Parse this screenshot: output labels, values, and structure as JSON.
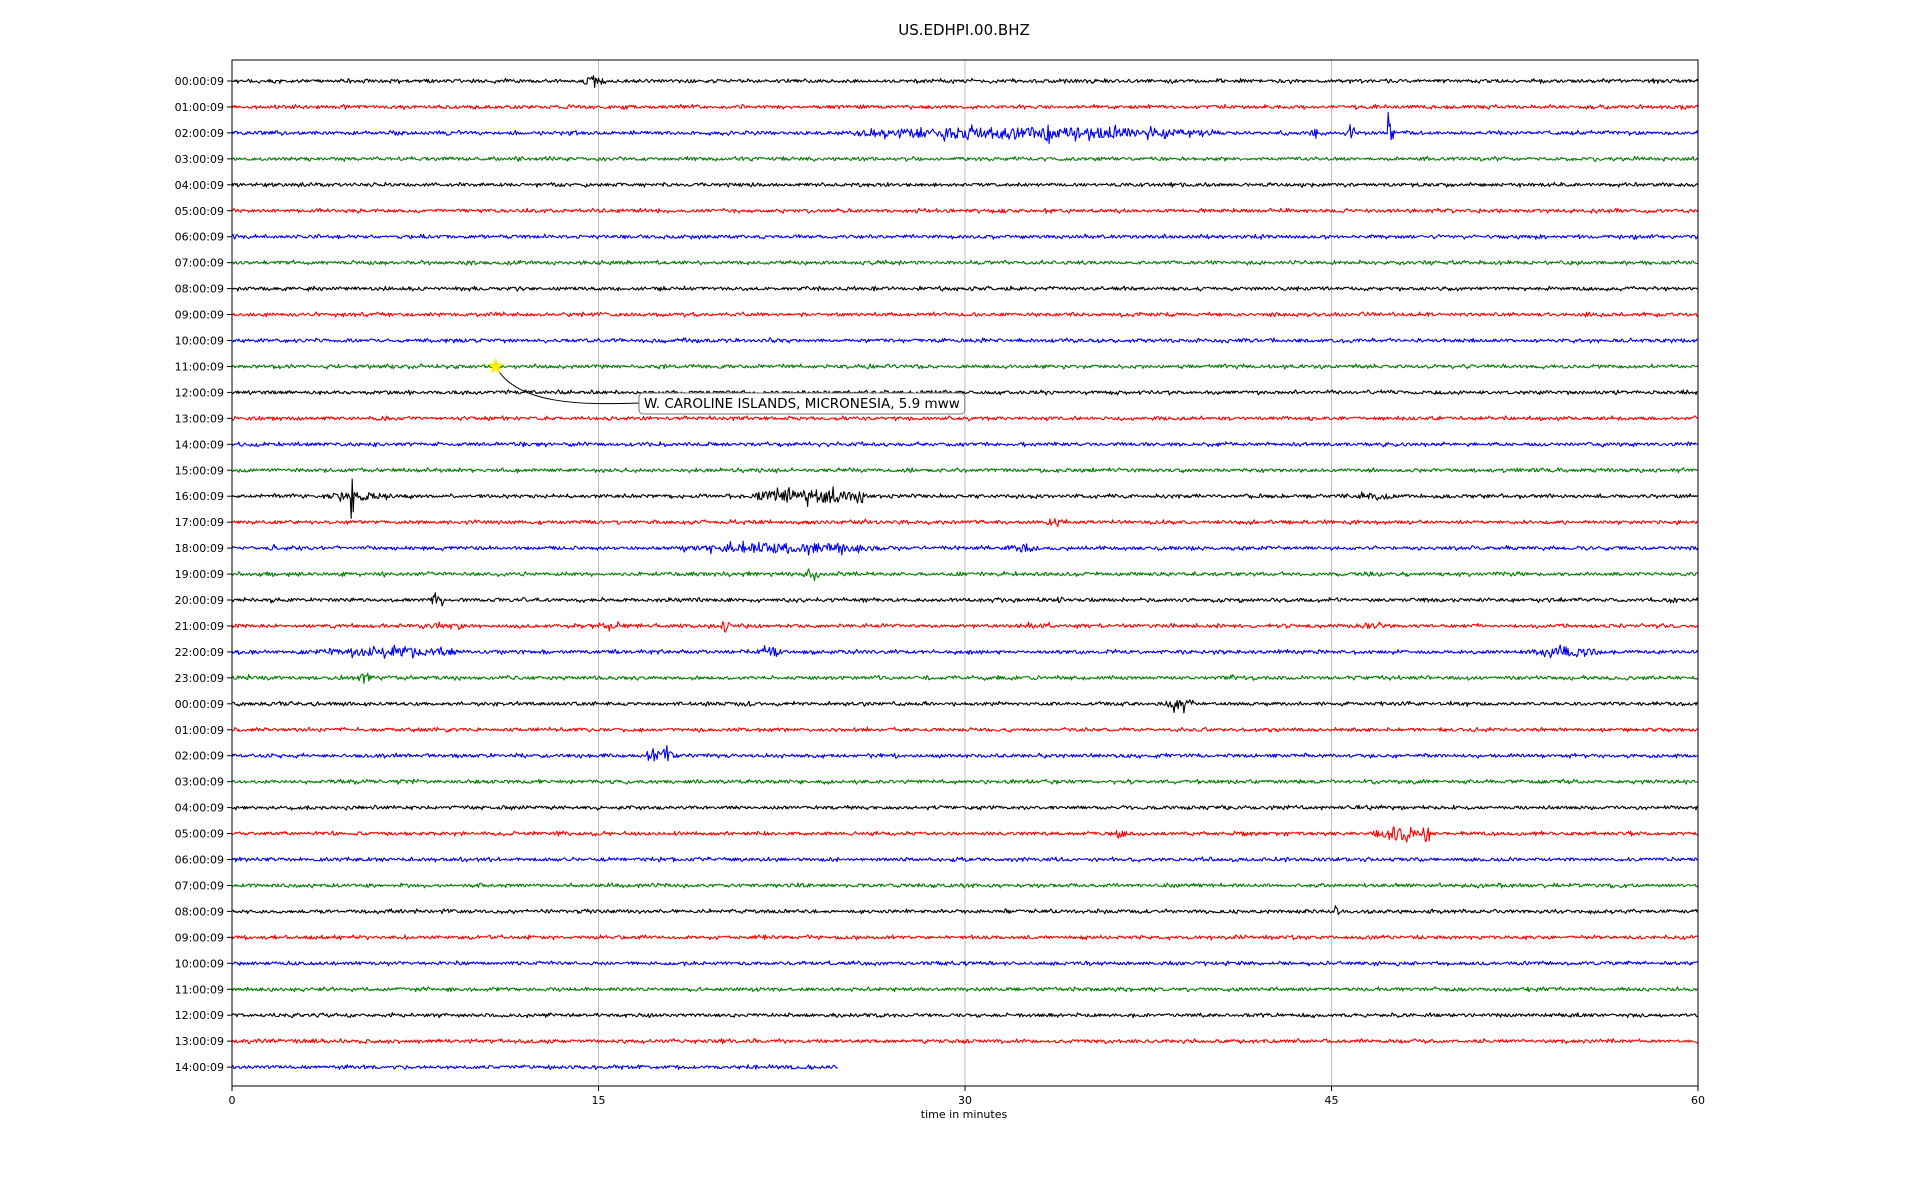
{
  "chart_data": {
    "type": "line",
    "title": "US.EDHPI.00.BHZ",
    "xlabel": "time in minutes",
    "xlim": [
      0,
      60
    ],
    "xticks": [
      "0",
      "15",
      "30",
      "45",
      "60"
    ],
    "grid": "vertical lines at x ticks",
    "trace_colors": [
      "#000000",
      "#ff0000",
      "#0000ff",
      "#008000"
    ],
    "row_labels": [
      "00:00:09",
      "01:00:09",
      "02:00:09",
      "03:00:09",
      "04:00:09",
      "05:00:09",
      "06:00:09",
      "07:00:09",
      "08:00:09",
      "09:00:09",
      "10:00:09",
      "11:00:09",
      "12:00:09",
      "13:00:09",
      "14:00:09",
      "15:00:09",
      "16:00:09",
      "17:00:09",
      "18:00:09",
      "19:00:09",
      "20:00:09",
      "21:00:09",
      "22:00:09",
      "23:00:09",
      "00:00:09",
      "01:00:09",
      "02:00:09",
      "03:00:09",
      "04:00:09",
      "05:00:09",
      "06:00:09",
      "07:00:09",
      "08:00:09",
      "09:00:09",
      "10:00:09",
      "11:00:09",
      "12:00:09",
      "13:00:09",
      "14:00:09"
    ],
    "last_row_end_minute": 24.8,
    "bursts": [
      {
        "row": 0,
        "t": 14.8,
        "width": 1.0,
        "amp": 0.6
      },
      {
        "row": 2,
        "t": 6.7,
        "width": 0.8,
        "amp": 0.4
      },
      {
        "row": 2,
        "t": 32.5,
        "width": 16.0,
        "amp": 0.7
      },
      {
        "row": 2,
        "t": 33.4,
        "width": 0.3,
        "amp": 2.0
      },
      {
        "row": 2,
        "t": 47.4,
        "width": 0.3,
        "amp": 2.3
      },
      {
        "row": 2,
        "t": 44.3,
        "width": 0.3,
        "amp": 1.4
      },
      {
        "row": 2,
        "t": 45.8,
        "width": 0.3,
        "amp": 1.3
      },
      {
        "row": 16,
        "t": 4.9,
        "width": 0.2,
        "amp": 3.0
      },
      {
        "row": 16,
        "t": 5.2,
        "width": 3.0,
        "amp": 0.5
      },
      {
        "row": 16,
        "t": 23.5,
        "width": 5.0,
        "amp": 0.8
      },
      {
        "row": 16,
        "t": 25.7,
        "width": 0.3,
        "amp": 1.2
      },
      {
        "row": 16,
        "t": 46.8,
        "width": 2.0,
        "amp": 0.4
      },
      {
        "row": 17,
        "t": 25.8,
        "width": 0.8,
        "amp": 0.3
      },
      {
        "row": 17,
        "t": 33.6,
        "width": 0.6,
        "amp": 0.5
      },
      {
        "row": 18,
        "t": 1.7,
        "width": 0.3,
        "amp": 0.5
      },
      {
        "row": 18,
        "t": 22.5,
        "width": 9.0,
        "amp": 0.6
      },
      {
        "row": 18,
        "t": 24.9,
        "width": 0.3,
        "amp": 1.0
      },
      {
        "row": 18,
        "t": 32.5,
        "width": 1.5,
        "amp": 0.5
      },
      {
        "row": 19,
        "t": 23.8,
        "width": 0.8,
        "amp": 0.5
      },
      {
        "row": 19,
        "t": 6.2,
        "width": 0.2,
        "amp": 0.4
      },
      {
        "row": 20,
        "t": 1.7,
        "width": 0.4,
        "amp": 0.5
      },
      {
        "row": 20,
        "t": 8.4,
        "width": 0.8,
        "amp": 0.6
      },
      {
        "row": 20,
        "t": 33.9,
        "width": 0.4,
        "amp": 0.4
      },
      {
        "row": 20,
        "t": 49.0,
        "width": 2.8,
        "amp": 0.25
      },
      {
        "row": 20,
        "t": 58.8,
        "width": 1.2,
        "amp": 0.25
      },
      {
        "row": 21,
        "t": 0.5,
        "width": 1.3,
        "amp": 0.25
      },
      {
        "row": 21,
        "t": 8.8,
        "width": 3.4,
        "amp": 0.3
      },
      {
        "row": 21,
        "t": 15.6,
        "width": 1.5,
        "amp": 0.4
      },
      {
        "row": 21,
        "t": 20.2,
        "width": 0.4,
        "amp": 0.8
      },
      {
        "row": 21,
        "t": 21.0,
        "width": 2.2,
        "amp": 0.3
      },
      {
        "row": 21,
        "t": 32.9,
        "width": 2.6,
        "amp": 0.3
      },
      {
        "row": 21,
        "t": 46.6,
        "width": 2.6,
        "amp": 0.3
      },
      {
        "row": 22,
        "t": 6.3,
        "width": 7.0,
        "amp": 0.5
      },
      {
        "row": 22,
        "t": 22.0,
        "width": 1.0,
        "amp": 0.7
      },
      {
        "row": 22,
        "t": 54.5,
        "width": 3.8,
        "amp": 0.5
      },
      {
        "row": 23,
        "t": 0.8,
        "width": 0.4,
        "amp": 0.4
      },
      {
        "row": 23,
        "t": 5.5,
        "width": 0.8,
        "amp": 0.7
      },
      {
        "row": 23,
        "t": 41.0,
        "width": 0.4,
        "amp": 0.3
      },
      {
        "row": 24,
        "t": 25.0,
        "width": 0.4,
        "amp": 0.4
      },
      {
        "row": 24,
        "t": 38.8,
        "width": 1.4,
        "amp": 0.7
      },
      {
        "row": 24,
        "t": 54.3,
        "width": 0.2,
        "amp": 0.3
      },
      {
        "row": 26,
        "t": 17.6,
        "width": 1.4,
        "amp": 0.8
      },
      {
        "row": 26,
        "t": 51.0,
        "width": 0.2,
        "amp": 0.3
      },
      {
        "row": 27,
        "t": 4.0,
        "width": 0.4,
        "amp": 0.3
      },
      {
        "row": 29,
        "t": 36.4,
        "width": 0.4,
        "amp": 0.6
      },
      {
        "row": 29,
        "t": 47.7,
        "width": 2.0,
        "amp": 0.8
      },
      {
        "row": 29,
        "t": 48.9,
        "width": 0.3,
        "amp": 1.5
      },
      {
        "row": 30,
        "t": 42.3,
        "width": 0.2,
        "amp": 0.3
      },
      {
        "row": 32,
        "t": 45.2,
        "width": 0.3,
        "amp": 0.5
      },
      {
        "row": 36,
        "t": 30.5,
        "width": 0.2,
        "amp": 0.2
      }
    ],
    "event": {
      "row": 11,
      "minute": 10.8,
      "label": "W. CAROLINE ISLANDS, MICRONESIA, 5.9 mww"
    }
  }
}
